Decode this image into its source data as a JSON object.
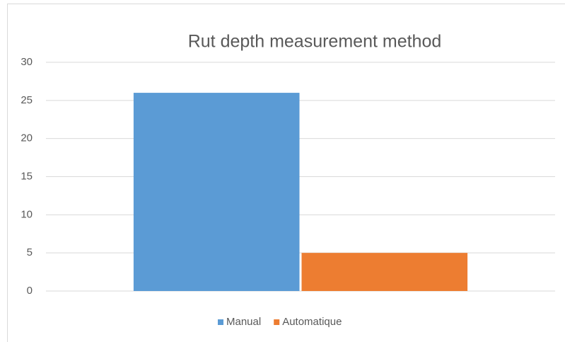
{
  "chart_data": {
    "type": "bar",
    "title": "Rut depth measurement method",
    "categories": [
      null
    ],
    "series": [
      {
        "name": "Manual",
        "color": "#5b9bd5",
        "values": [
          26
        ]
      },
      {
        "name": "Automatique",
        "color": "#ed7d31",
        "values": [
          5
        ]
      }
    ],
    "ylim": [
      0,
      30
    ],
    "yticks": [
      0,
      5,
      10,
      15,
      20,
      25,
      30
    ],
    "grid": true,
    "legend": "bottom"
  }
}
